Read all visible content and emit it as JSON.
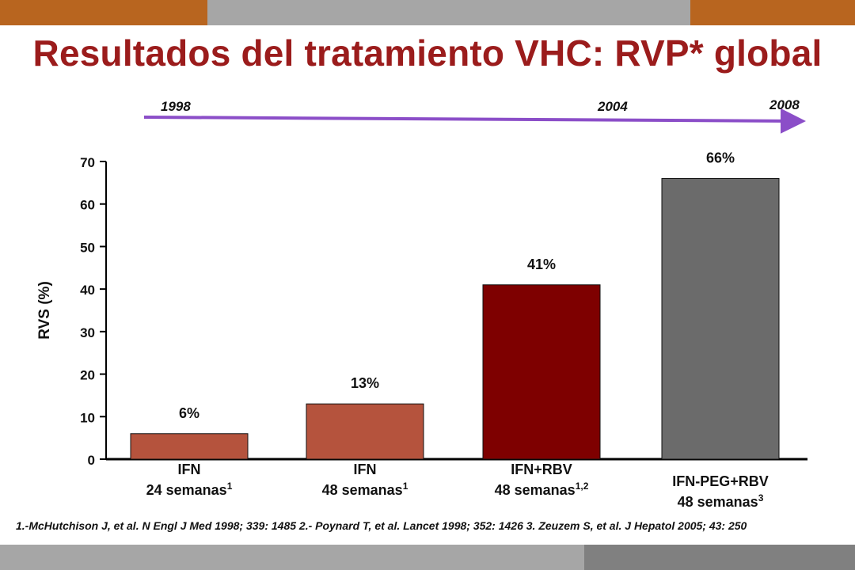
{
  "title": "Resultados del tratamiento VHC: RVP* global",
  "timeline": {
    "years": [
      {
        "label": "1998"
      },
      {
        "label": "2004"
      },
      {
        "label": "2008"
      }
    ],
    "arrow_color": "#8b4ec8"
  },
  "colors": {
    "title": "#9b1c1c",
    "band_orange": "#b8651f",
    "band_gray": "#a6a6a6",
    "band_dark": "#808080"
  },
  "chart_data": {
    "type": "bar",
    "ylabel": "RVS (%)",
    "ylim": [
      0,
      70
    ],
    "yticks": [
      0,
      10,
      20,
      30,
      40,
      50,
      60,
      70
    ],
    "categories": [
      {
        "line1": "IFN",
        "line2": "24 semanas",
        "sup": "1"
      },
      {
        "line1": "IFN",
        "line2": "48 semanas",
        "sup": "1"
      },
      {
        "line1": "IFN+RBV",
        "line2": "48 semanas",
        "sup": "1,2"
      },
      {
        "line1": "IFN-PEG+RBV",
        "line2": "48 semanas",
        "sup": "3"
      }
    ],
    "values": [
      6,
      13,
      41,
      66
    ],
    "value_labels": [
      "6%",
      "13%",
      "41%",
      "66%"
    ],
    "bar_colors": [
      "#b5533d",
      "#b5533d",
      "#7e0000",
      "#6b6b6b"
    ],
    "grid": false
  },
  "footnote": "1.-McHutchison J, et al. N Engl J Med 1998; 339: 1485  2.- Poynard T, et al. Lancet 1998; 352: 1426 3. Zeuzem S, et al. J Hepatol 2005; 43: 250"
}
